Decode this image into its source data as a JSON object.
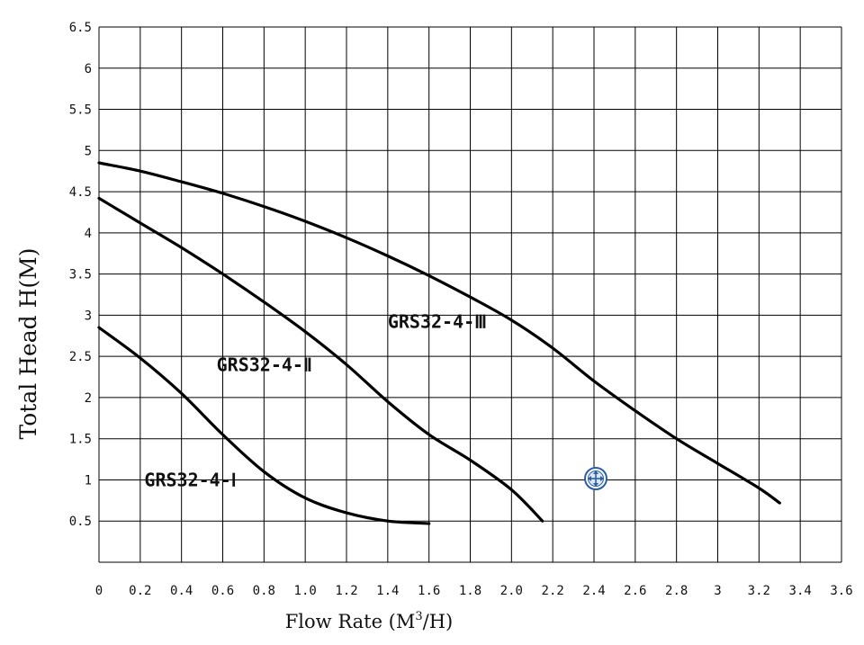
{
  "chart_data": {
    "type": "line",
    "xlabel": "Flow Rate (M",
    "xlabel_sup": "3",
    "xlabel_tail": "/H)",
    "ylabel": "Total Head H(M)",
    "xlim": [
      0,
      3.6
    ],
    "ylim": [
      0,
      6.5
    ],
    "grid": true,
    "x_ticks": [
      0,
      0.2,
      0.4,
      0.6,
      0.8,
      1.0,
      1.2,
      1.4,
      1.6,
      1.8,
      2.0,
      2.2,
      2.4,
      2.6,
      2.8,
      3,
      3.2,
      3.4,
      3.6
    ],
    "x_tick_labels": [
      "0",
      "0.2",
      "0.4",
      "0.6",
      "0.8",
      "1.0",
      "1.2",
      "1.4",
      "1.6",
      "1.8",
      "2.0",
      "2.2",
      "2.4",
      "2.6",
      "2.8",
      "3",
      "3.2",
      "3.4",
      "3.6"
    ],
    "y_ticks": [
      0.5,
      1,
      1.5,
      2,
      2.5,
      3,
      3.5,
      4,
      4.5,
      5,
      5.5,
      6,
      6.5
    ],
    "y_tick_labels": [
      "0.5",
      "1",
      "1.5",
      "2",
      "2.5",
      "3",
      "3.5",
      "4",
      "4.5",
      "5",
      "5.5",
      "6",
      "6.5"
    ],
    "series": [
      {
        "name": "GRS32-4-Ⅰ",
        "label_at": [
          0.22,
          1.0
        ],
        "x": [
          0,
          0.2,
          0.4,
          0.6,
          0.8,
          1.0,
          1.2,
          1.4,
          1.6
        ],
        "y": [
          2.85,
          2.48,
          2.05,
          1.55,
          1.1,
          0.78,
          0.6,
          0.5,
          0.47
        ]
      },
      {
        "name": "GRS32-4-Ⅱ",
        "label_at": [
          0.57,
          2.4
        ],
        "x": [
          0,
          0.2,
          0.4,
          0.6,
          0.8,
          1.0,
          1.2,
          1.4,
          1.6,
          1.8,
          2.0,
          2.15
        ],
        "y": [
          4.42,
          4.12,
          3.82,
          3.5,
          3.16,
          2.8,
          2.4,
          1.95,
          1.55,
          1.24,
          0.88,
          0.5
        ]
      },
      {
        "name": "GRS32-4-Ⅲ",
        "label_at": [
          1.4,
          2.92
        ],
        "x": [
          0,
          0.2,
          0.4,
          0.6,
          0.8,
          1.0,
          1.2,
          1.4,
          1.6,
          1.8,
          2.0,
          2.2,
          2.4,
          2.6,
          2.8,
          3.0,
          3.2,
          3.3
        ],
        "y": [
          4.85,
          4.75,
          4.62,
          4.48,
          4.32,
          4.14,
          3.94,
          3.72,
          3.48,
          3.22,
          2.94,
          2.6,
          2.2,
          1.84,
          1.5,
          1.2,
          0.9,
          0.72
        ]
      }
    ]
  }
}
